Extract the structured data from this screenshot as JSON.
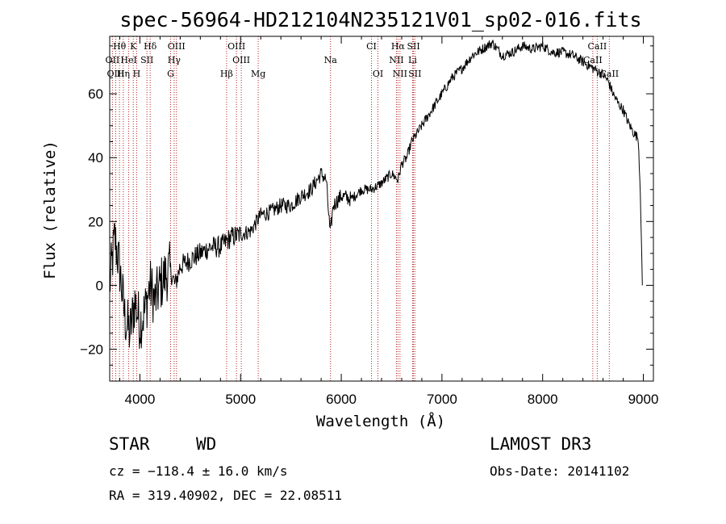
{
  "chart_data": {
    "type": "line",
    "title": "spec-56964-HD212104N235121V01_sp02-016.fits",
    "xlabel": "Wavelength (Å)",
    "ylabel": "Flux (relative)",
    "xlim": [
      3700,
      9100
    ],
    "ylim": [
      -30,
      78
    ],
    "xticks": [
      4000,
      5000,
      6000,
      7000,
      8000,
      9000
    ],
    "yticks": [
      -20,
      0,
      20,
      40,
      60
    ],
    "series": [
      {
        "name": "flux",
        "x": [
          3700,
          3750,
          3800,
          3850,
          3900,
          3950,
          4000,
          4050,
          4100,
          4150,
          4200,
          4250,
          4300,
          4350,
          4400,
          4500,
          4600,
          4700,
          4800,
          4900,
          5000,
          5100,
          5200,
          5300,
          5400,
          5500,
          5600,
          5700,
          5800,
          5850,
          5890,
          5920,
          6000,
          6100,
          6200,
          6300,
          6400,
          6500,
          6563,
          6600,
          6650,
          6700,
          6800,
          6900,
          7000,
          7100,
          7200,
          7300,
          7400,
          7500,
          7600,
          7700,
          7800,
          7900,
          8000,
          8100,
          8200,
          8300,
          8400,
          8450,
          8500,
          8550,
          8600,
          8650,
          8700,
          8750,
          8800,
          8850,
          8900,
          8950,
          8970,
          8990
        ],
        "y": [
          0,
          15,
          5,
          -10,
          -15,
          -5,
          -12,
          -8,
          0,
          -5,
          0,
          3,
          5,
          0,
          6,
          8,
          10,
          12,
          12,
          15,
          16,
          17,
          22,
          23,
          25,
          25,
          28,
          30,
          35,
          33,
          16,
          25,
          28,
          27,
          30,
          30,
          32,
          35,
          33,
          38,
          40,
          45,
          50,
          55,
          60,
          65,
          68,
          72,
          74,
          76,
          72,
          73,
          75,
          74,
          75,
          73,
          73,
          72,
          70,
          69,
          68,
          67,
          66,
          64,
          60,
          57,
          55,
          51,
          48,
          46,
          30,
          0
        ]
      }
    ],
    "spectral_lines": [
      {
        "label": "Hθ",
        "x": 3797,
        "row": 1
      },
      {
        "label": "K",
        "x": 3934,
        "row": 1
      },
      {
        "label": "Hδ",
        "x": 4102,
        "row": 1
      },
      {
        "label": "OIII",
        "x": 4363,
        "row": 1
      },
      {
        "label": "OIII",
        "x": 4959,
        "row": 1
      },
      {
        "label": "CI",
        "x": 6300,
        "row": 1
      },
      {
        "label": "Hα",
        "x": 6563,
        "row": 1
      },
      {
        "label": "SII",
        "x": 6717,
        "row": 1
      },
      {
        "label": "CaII",
        "x": 8542,
        "row": 1
      },
      {
        "label": "OII",
        "x": 3727,
        "row": 2
      },
      {
        "label": "HeI",
        "x": 3889,
        "row": 2
      },
      {
        "label": "SII",
        "x": 4070,
        "row": 2
      },
      {
        "label": "Hγ",
        "x": 4340,
        "row": 2
      },
      {
        "label": "OIII",
        "x": 5007,
        "row": 2
      },
      {
        "label": "Na",
        "x": 5893,
        "row": 2
      },
      {
        "label": "NII",
        "x": 6548,
        "row": 2
      },
      {
        "label": "Li",
        "x": 6708,
        "row": 2
      },
      {
        "label": "CaII",
        "x": 8498,
        "row": 2
      },
      {
        "label": "OIII",
        "x": 3760,
        "row": 3
      },
      {
        "label": "Hη",
        "x": 3835,
        "row": 3
      },
      {
        "label": "H",
        "x": 3968,
        "row": 3
      },
      {
        "label": "G",
        "x": 4305,
        "row": 3
      },
      {
        "label": "Hβ",
        "x": 4861,
        "row": 3
      },
      {
        "label": "Mg",
        "x": 5175,
        "row": 3
      },
      {
        "label": "OI",
        "x": 6364,
        "row": 3
      },
      {
        "label": "NII",
        "x": 6583,
        "row": 3
      },
      {
        "label": "SII",
        "x": 6731,
        "row": 3
      },
      {
        "label": "CaII",
        "x": 8662,
        "row": 3
      }
    ]
  },
  "info": {
    "object_class": "STAR",
    "subclass": "WD",
    "survey": "LAMOST DR3",
    "cz": "cz = −118.4 ± 16.0 km/s",
    "obs_date": "Obs-Date: 20141102",
    "coords": "RA = 319.40902, DEC =  22.08511"
  },
  "colors": {
    "line_marker": "#b22222",
    "spectrum": "#000000"
  }
}
